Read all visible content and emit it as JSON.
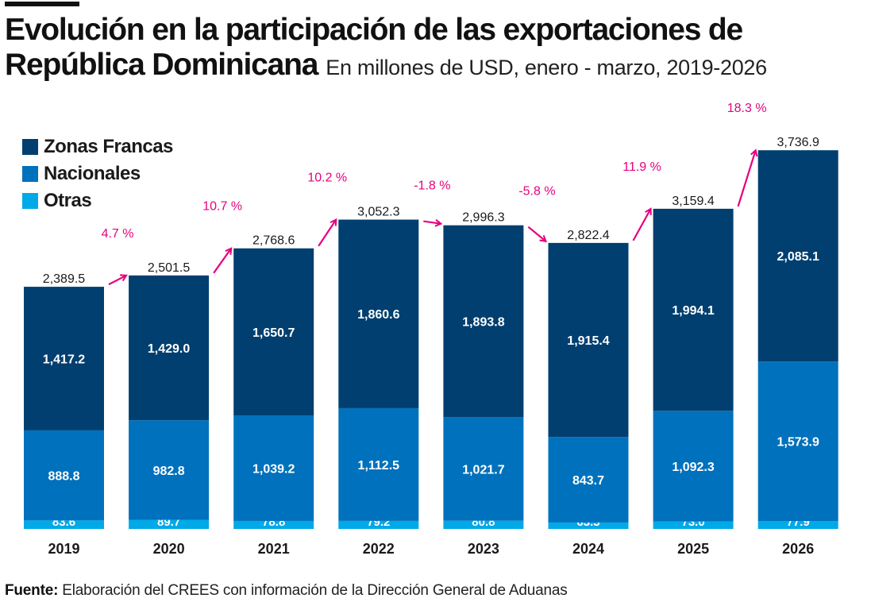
{
  "header": {
    "title": "Evolución en la participación de las exportaciones de República Dominicana",
    "title_line1": "Evolución en la participación de las exportaciones de",
    "title_line2": "República Dominicana",
    "subtitle": "En millones de USD, enero - marzo, 2019-2026"
  },
  "footer": {
    "label": "Fuente:",
    "text": " Elaboración del CREES con información de la Dirección General de Aduanas"
  },
  "chart_data": {
    "type": "bar",
    "stacked": true,
    "title": "Evolución en la participación de las exportaciones de República Dominicana",
    "subtitle": "En millones de USD, enero - marzo, 2019-2026",
    "categories": [
      "2019",
      "2020",
      "2021",
      "2022",
      "2023",
      "2024",
      "2025",
      "2026"
    ],
    "series": [
      {
        "name": "Otras",
        "color": "#00a9e8",
        "values": [
          83.6,
          89.7,
          78.8,
          79.2,
          80.8,
          63.3,
          73.0,
          77.9
        ],
        "labels": [
          "83.6",
          "89.7",
          "78.8",
          "79.2",
          "80.8",
          "63.3",
          "73.0",
          "77.9"
        ]
      },
      {
        "name": "Nacionales",
        "color": "#0071bc",
        "values": [
          888.8,
          982.8,
          1039.2,
          1112.5,
          1021.7,
          843.7,
          1092.3,
          1573.9
        ],
        "labels": [
          "888.8",
          "982.8",
          "1,039.2",
          "1,112.5",
          "1,021.7",
          "843.7",
          "1,092.3",
          "1,573.9"
        ]
      },
      {
        "name": "Zonas Francas",
        "color": "#003f6f",
        "values": [
          1417.2,
          1429.0,
          1650.7,
          1860.6,
          1893.8,
          1915.4,
          1994.1,
          2085.1
        ],
        "labels": [
          "1,417.2",
          "1,429.0",
          "1,650.7",
          "1,860.6",
          "1,893.8",
          "1,915.4",
          "1,994.1",
          "2,085.1"
        ]
      }
    ],
    "totals": [
      2389.5,
      2501.5,
      2768.6,
      3052.3,
      2996.3,
      2822.4,
      3159.4,
      3736.9
    ],
    "total_labels": [
      "2,389.5",
      "2,501.5",
      "2,768.6",
      "3,052.3",
      "2,996.3",
      "2,822.4",
      "3,159.4",
      "3,736.9"
    ],
    "growth_labels": [
      "4.7 %",
      "10.7 %",
      "10.2 %",
      "-1.8 %",
      "-5.8 %",
      "11.9 %",
      "18.3 %"
    ],
    "growth_color": "#e6007e",
    "legend": {
      "position": "top-left",
      "entries": [
        "Zonas Francas",
        "Nacionales",
        "Otras"
      ]
    },
    "grid": false,
    "y_axis_visible": false
  }
}
